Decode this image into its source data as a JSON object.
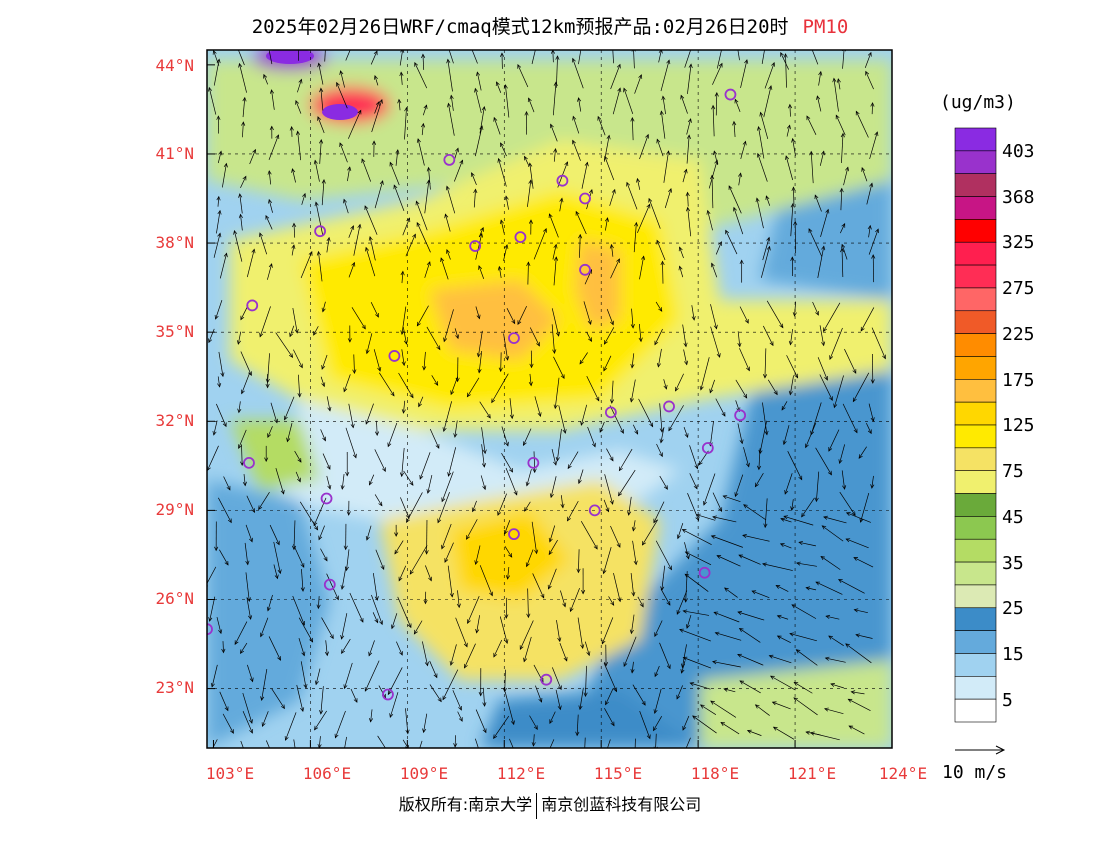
{
  "title": {
    "main": "2025年02月26日WRF/cmaq模式12km预报产品:02月26日20时",
    "pollutant": "PM10"
  },
  "map": {
    "lat_labels": [
      "44°N",
      "41°N",
      "38°N",
      "35°N",
      "32°N",
      "29°N",
      "26°N",
      "23°N"
    ],
    "lon_labels": [
      "103°E",
      "106°E",
      "109°E",
      "112°E",
      "115°E",
      "118°E",
      "121°E",
      "124°E"
    ],
    "lat_range": [
      21,
      44.5
    ],
    "lon_range": [
      102.8,
      124
    ],
    "city_markers": [
      {
        "lon": 119.0,
        "lat": 43.0
      },
      {
        "lon": 110.3,
        "lat": 40.8
      },
      {
        "lon": 113.8,
        "lat": 40.1
      },
      {
        "lon": 114.5,
        "lat": 39.5
      },
      {
        "lon": 106.3,
        "lat": 38.4
      },
      {
        "lon": 111.1,
        "lat": 37.9
      },
      {
        "lon": 112.5,
        "lat": 38.2
      },
      {
        "lon": 114.5,
        "lat": 37.1
      },
      {
        "lon": 104.2,
        "lat": 35.9
      },
      {
        "lon": 112.3,
        "lat": 34.8
      },
      {
        "lon": 108.6,
        "lat": 34.2
      },
      {
        "lon": 115.3,
        "lat": 32.3
      },
      {
        "lon": 117.1,
        "lat": 32.5
      },
      {
        "lon": 119.3,
        "lat": 32.2
      },
      {
        "lon": 118.3,
        "lat": 31.1
      },
      {
        "lon": 104.1,
        "lat": 30.6
      },
      {
        "lon": 112.9,
        "lat": 30.6
      },
      {
        "lon": 106.5,
        "lat": 29.4
      },
      {
        "lon": 114.8,
        "lat": 29.0
      },
      {
        "lon": 112.3,
        "lat": 28.2
      },
      {
        "lon": 118.2,
        "lat": 26.9
      },
      {
        "lon": 106.6,
        "lat": 26.5
      },
      {
        "lon": 102.8,
        "lat": 25.0
      },
      {
        "lon": 108.4,
        "lat": 22.8
      },
      {
        "lon": 113.3,
        "lat": 23.3
      }
    ]
  },
  "legend": {
    "unit": "(ug/m3)",
    "bins": [
      {
        "color": "#8a2be2"
      },
      {
        "color": "#9932cc"
      },
      {
        "color": "#b03060"
      },
      {
        "color": "#c71585"
      },
      {
        "color": "#ff0000"
      },
      {
        "color": "#ff1f4f"
      },
      {
        "color": "#ff2d55"
      },
      {
        "color": "#ff6666"
      },
      {
        "color": "#f05a28"
      },
      {
        "color": "#ff8c00"
      },
      {
        "color": "#ffa500"
      },
      {
        "color": "#ffbf3f"
      },
      {
        "color": "#ffd700"
      },
      {
        "color": "#ffea00"
      },
      {
        "color": "#f5e264"
      },
      {
        "color": "#f0f06e"
      },
      {
        "color": "#6aaa3a"
      },
      {
        "color": "#8cc850"
      },
      {
        "color": "#b4dc64"
      },
      {
        "color": "#c8e68c"
      },
      {
        "color": "#dceab4"
      },
      {
        "color": "#3c8cc8"
      },
      {
        "color": "#64aadc"
      },
      {
        "color": "#a0d2f0"
      },
      {
        "color": "#d2ebf8"
      },
      {
        "color": "#ffffff"
      }
    ],
    "labels": [
      "403",
      "368",
      "325",
      "275",
      "225",
      "175",
      "125",
      "75",
      "45",
      "35",
      "25",
      "15",
      "5"
    ]
  },
  "wind": {
    "label": "10 m/s"
  },
  "footer": {
    "left": "版权所有:南京大学",
    "right": "南京创蓝科技有限公司"
  }
}
